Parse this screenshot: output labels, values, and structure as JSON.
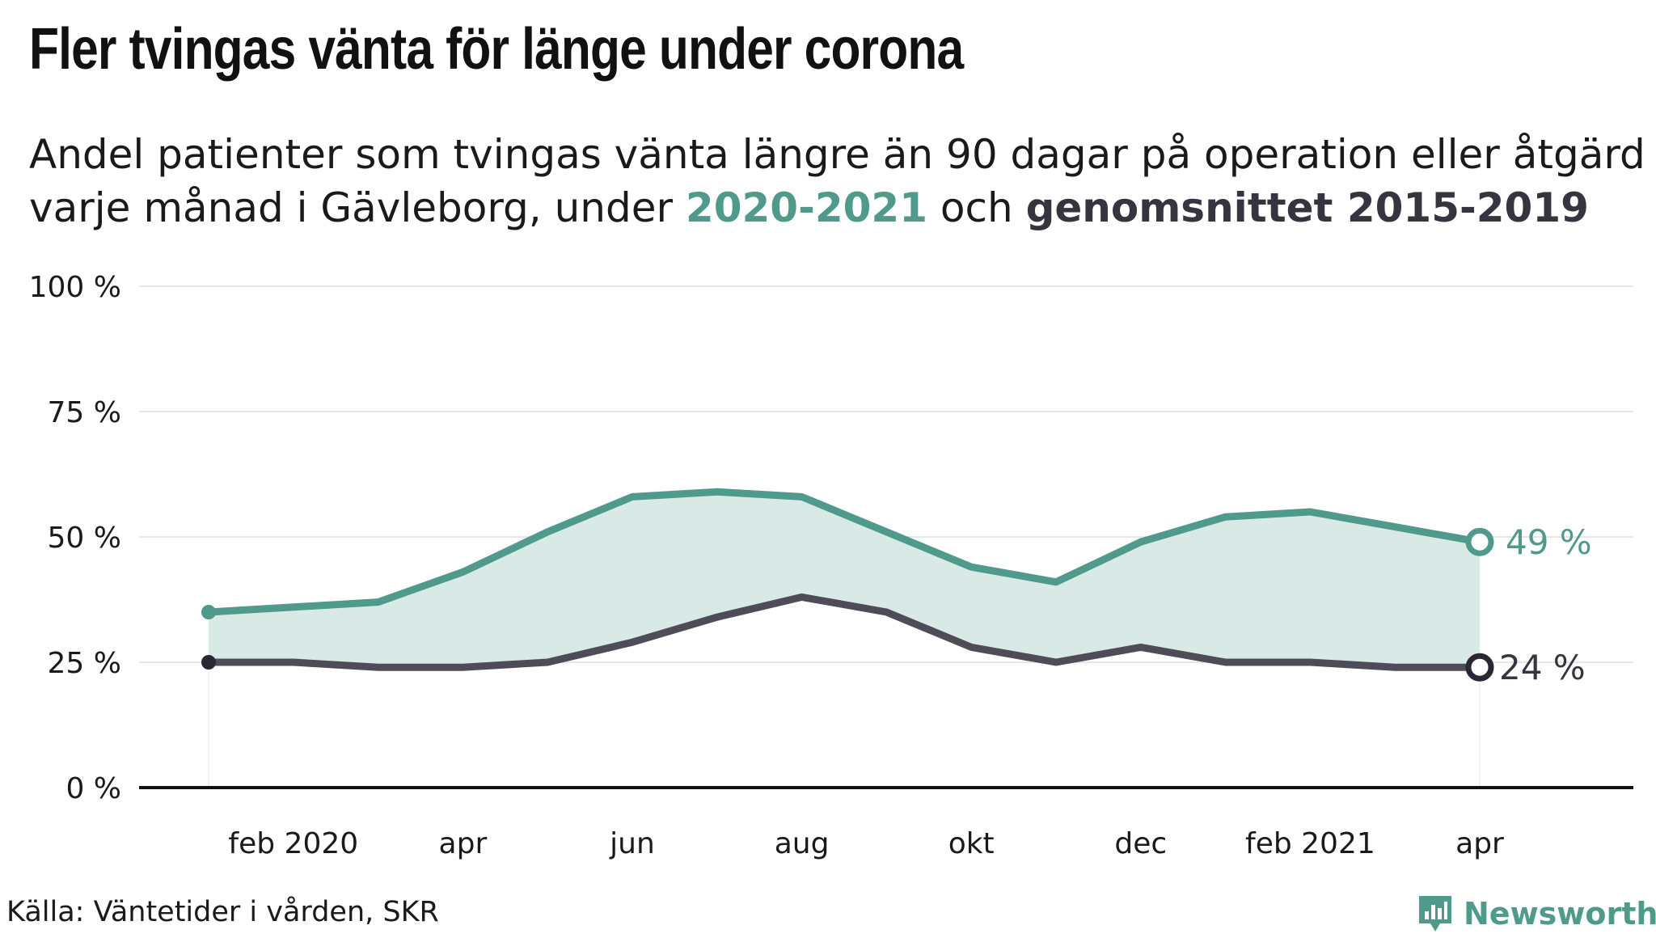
{
  "title": "Fler tvingas vänta för länge under corona",
  "subtitle": {
    "part1": "Andel patienter som tvingas vänta längre än 90 dagar på operation eller åtgärd varje månad i Gävleborg, under ",
    "series_a": "2020-2021",
    "part2": " och ",
    "series_b": "genomsnittet 2015-2019"
  },
  "source": "Källa: Väntetider i vården, SKR",
  "brand": "Newsworthy",
  "colors": {
    "teal": "#4f9a8a",
    "area": "#d9e9e6",
    "dark": "#4e4d57",
    "dark_marker": "#282733",
    "grid": "#e6e6e6",
    "axis": "#111111"
  },
  "chart_data": {
    "type": "line",
    "x": [
      "2020-01",
      "2020-02",
      "2020-03",
      "2020-04",
      "2020-05",
      "2020-06",
      "2020-07",
      "2020-08",
      "2020-09",
      "2020-10",
      "2020-11",
      "2020-12",
      "2021-01",
      "2021-02",
      "2021-03",
      "2021-04"
    ],
    "series": [
      {
        "name": "2020-2021",
        "values": [
          35,
          36,
          37,
          43,
          51,
          58,
          59,
          58,
          51,
          44,
          41,
          49,
          54,
          55,
          52,
          49
        ],
        "end_label": "49 %"
      },
      {
        "name": "genomsnittet 2015-2019",
        "values": [
          25,
          25,
          24,
          24,
          25,
          29,
          34,
          38,
          35,
          28,
          25,
          28,
          25,
          25,
          24,
          24
        ],
        "end_label": "24 %"
      }
    ],
    "ylim": [
      0,
      100
    ],
    "yticks": [
      {
        "value": 0,
        "label": "0 %"
      },
      {
        "value": 25,
        "label": "25 %"
      },
      {
        "value": 50,
        "label": "50 %"
      },
      {
        "value": 75,
        "label": "75 %"
      },
      {
        "value": 100,
        "label": "100 %"
      }
    ],
    "xticks": [
      {
        "x": "2020-02",
        "label": "feb 2020"
      },
      {
        "x": "2020-04",
        "label": "apr"
      },
      {
        "x": "2020-06",
        "label": "jun"
      },
      {
        "x": "2020-08",
        "label": "aug"
      },
      {
        "x": "2020-10",
        "label": "okt"
      },
      {
        "x": "2020-12",
        "label": "dec"
      },
      {
        "x": "2021-02",
        "label": "feb 2021"
      },
      {
        "x": "2021-04",
        "label": "apr"
      }
    ],
    "grid": true,
    "area_between_series": true
  }
}
